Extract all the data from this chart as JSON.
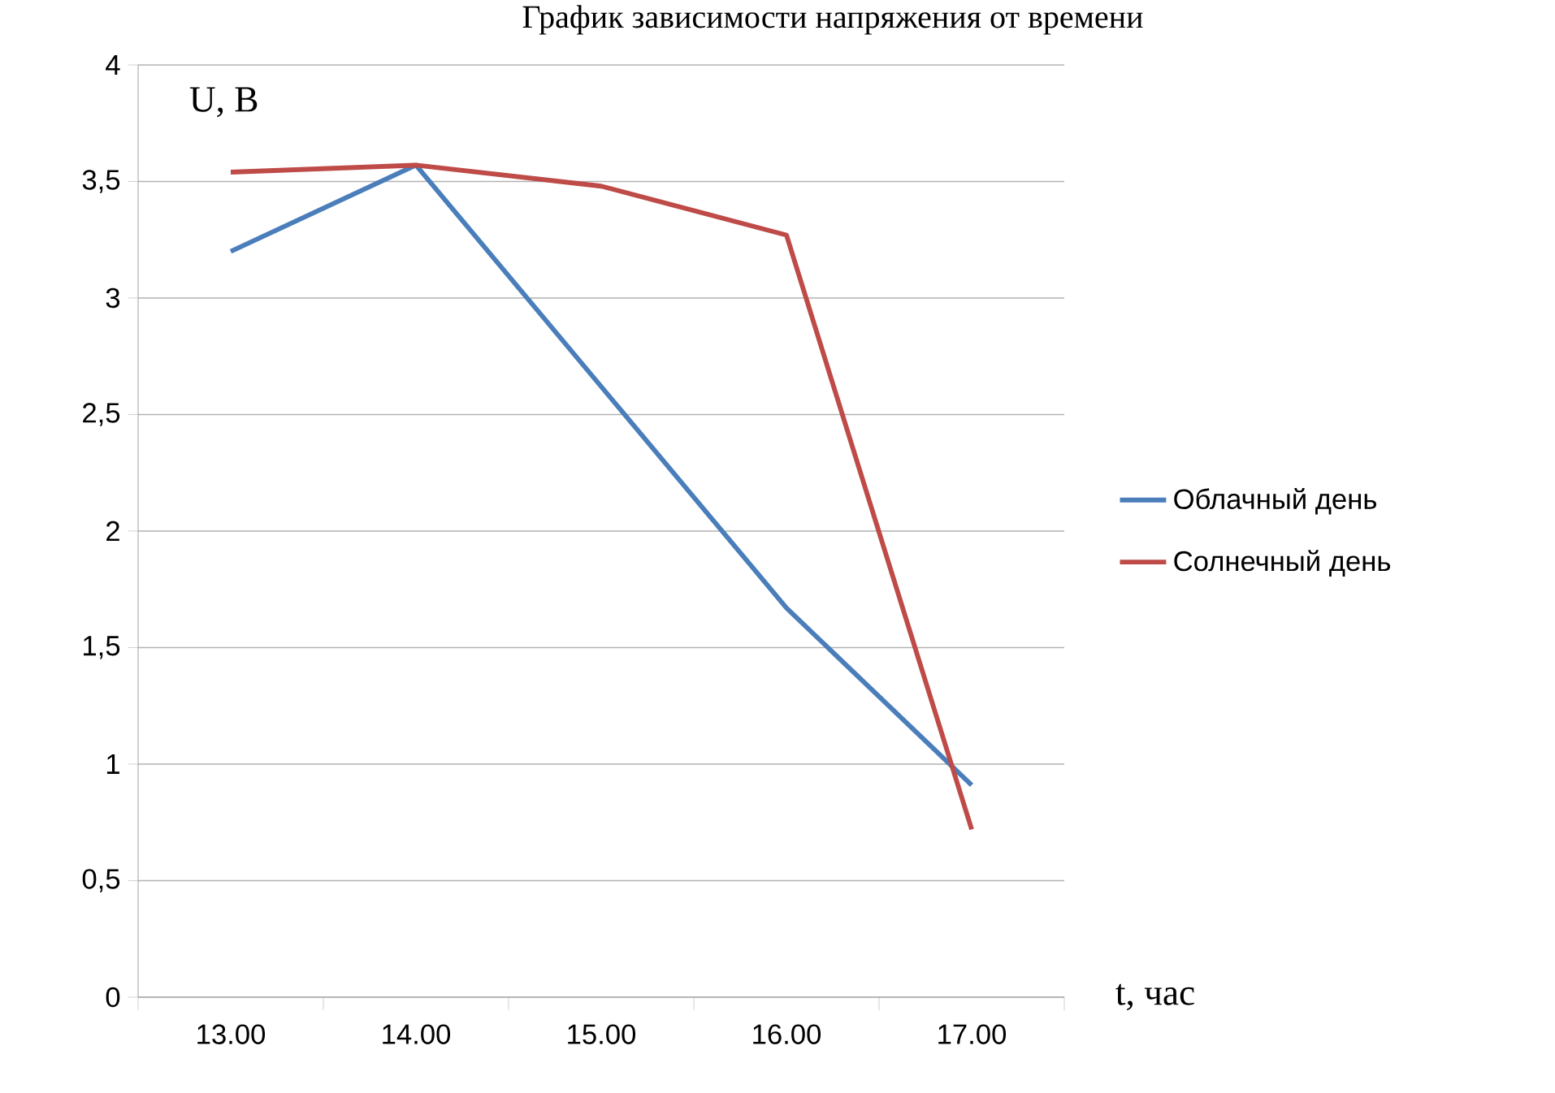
{
  "chart_data": {
    "type": "line",
    "title": "График зависимости напряжения от времени",
    "categories": [
      "13.00",
      "14.00",
      "15.00",
      "16.00",
      "17.00"
    ],
    "series": [
      {
        "name": "Облачный день",
        "color": "#4a7ebb",
        "values": [
          3.2,
          3.57,
          2.62,
          1.67,
          0.91
        ]
      },
      {
        "name": "Солнечный день",
        "color": "#be4b48",
        "values": [
          3.54,
          3.57,
          3.48,
          3.27,
          0.72
        ]
      }
    ],
    "ylim": [
      0,
      4
    ],
    "yticks": [
      0,
      {
        "value": 0.5,
        "label": "0,5"
      },
      1,
      {
        "value": 1.5,
        "label": "1,5"
      },
      2,
      {
        "value": 2.5,
        "label": "2,5"
      },
      3,
      {
        "value": 3.5,
        "label": "3,5"
      },
      4
    ],
    "annotations": [
      "U, В",
      "t, час"
    ],
    "grid": "y",
    "legend": "right",
    "marker": "none",
    "line_style": "solid"
  }
}
